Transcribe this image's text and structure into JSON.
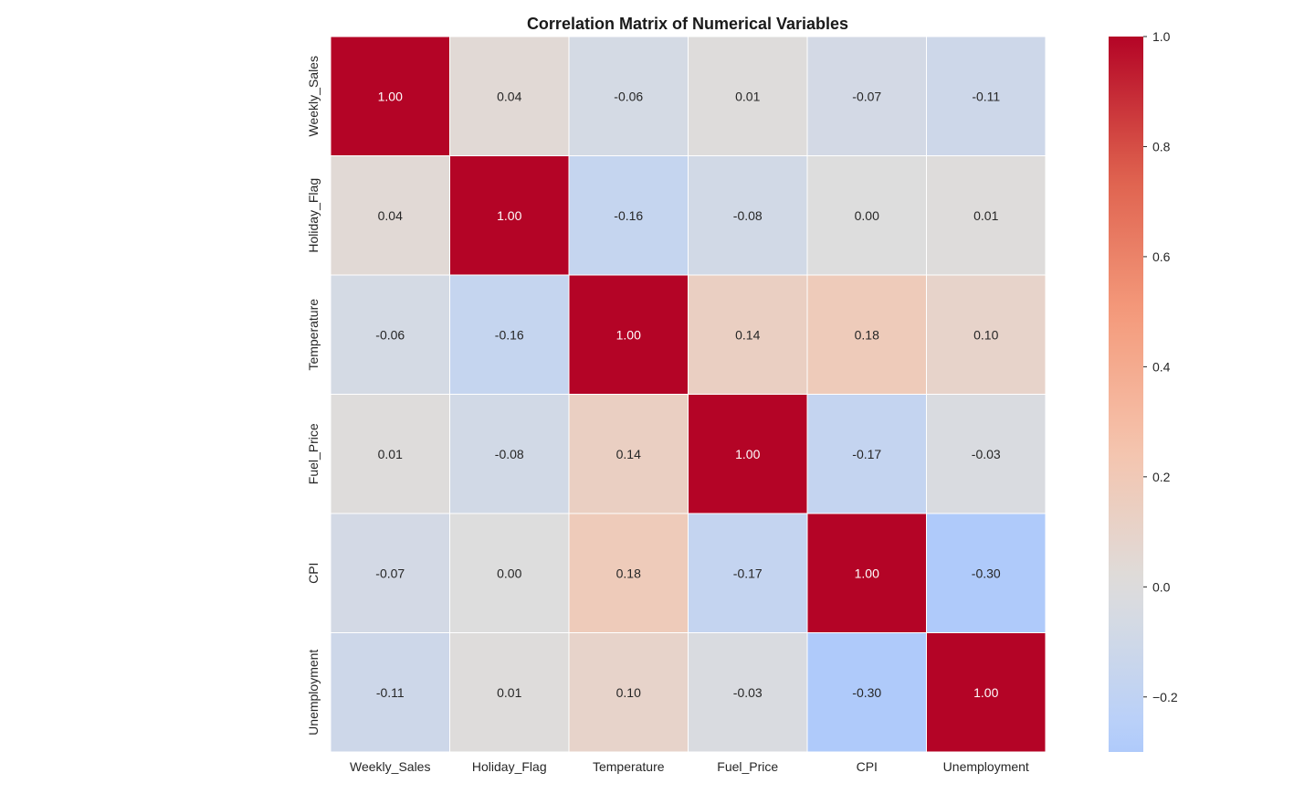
{
  "chart_data": {
    "type": "heatmap",
    "title": "Correlation Matrix of Numerical Variables",
    "xlabel": "",
    "ylabel": "",
    "x_categories": [
      "Weekly_Sales",
      "Holiday_Flag",
      "Temperature",
      "Fuel_Price",
      "CPI",
      "Unemployment"
    ],
    "y_categories": [
      "Weekly_Sales",
      "Holiday_Flag",
      "Temperature",
      "Fuel_Price",
      "CPI",
      "Unemployment"
    ],
    "values": [
      [
        1.0,
        0.04,
        -0.06,
        0.01,
        -0.07,
        -0.11
      ],
      [
        0.04,
        1.0,
        -0.16,
        -0.08,
        -0.0,
        0.01
      ],
      [
        -0.06,
        -0.16,
        1.0,
        0.14,
        0.18,
        0.1
      ],
      [
        0.01,
        -0.08,
        0.14,
        1.0,
        -0.17,
        -0.03
      ],
      [
        -0.07,
        -0.0,
        0.18,
        -0.17,
        1.0,
        -0.3
      ],
      [
        -0.11,
        0.01,
        0.1,
        -0.03,
        -0.3,
        1.0
      ]
    ],
    "annotation_format": "0.00",
    "colormap": "coolwarm",
    "colormap_center": 0.0,
    "colorbar": {
      "range": [
        -0.3,
        1.0
      ],
      "ticks": [
        -0.2,
        0.0,
        0.2,
        0.4,
        0.6,
        0.8,
        1.0
      ],
      "tick_labels": [
        "−0.2",
        "0.0",
        "0.2",
        "0.4",
        "0.6",
        "0.8",
        "1.0"
      ],
      "placement": "right"
    },
    "grid": false,
    "cell_border_color": "#ffffff"
  }
}
